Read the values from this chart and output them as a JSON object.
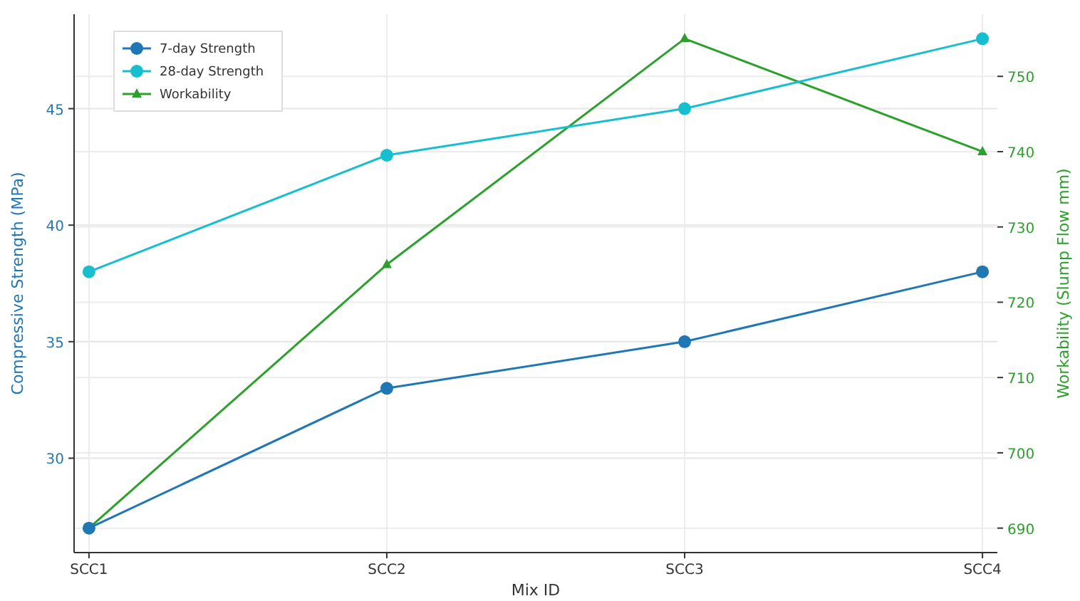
{
  "chart_data": {
    "type": "line",
    "xlabel": "Mix ID",
    "ylabel": "Compressive Strength (MPa)",
    "y2label": "Workability (Slump Flow mm)",
    "categories": [
      "SCC1",
      "SCC2",
      "SCC3",
      "SCC4"
    ],
    "series": [
      {
        "name": "7-day Strength",
        "color": "#1f77b4",
        "values": [
          27,
          33,
          35,
          38
        ],
        "marker": "circle"
      },
      {
        "name": "28-day Strength",
        "color": "#17becf",
        "values": [
          38,
          43,
          45,
          48
        ],
        "marker": "circle"
      },
      {
        "name": "Workability",
        "color": "#2ca02c",
        "values": [
          690,
          725,
          755,
          740
        ],
        "axis": "y2",
        "marker": "triangle"
      }
    ],
    "ylim": [
      25.95,
      49.05
    ],
    "yticks": [
      30,
      35,
      40,
      45
    ],
    "y2lim": [
      686.75,
      758.25
    ],
    "y2ticks": [
      690,
      700,
      710,
      720,
      730,
      740,
      750
    ],
    "grid": true,
    "legend": "top left",
    "line_style": "solid"
  }
}
